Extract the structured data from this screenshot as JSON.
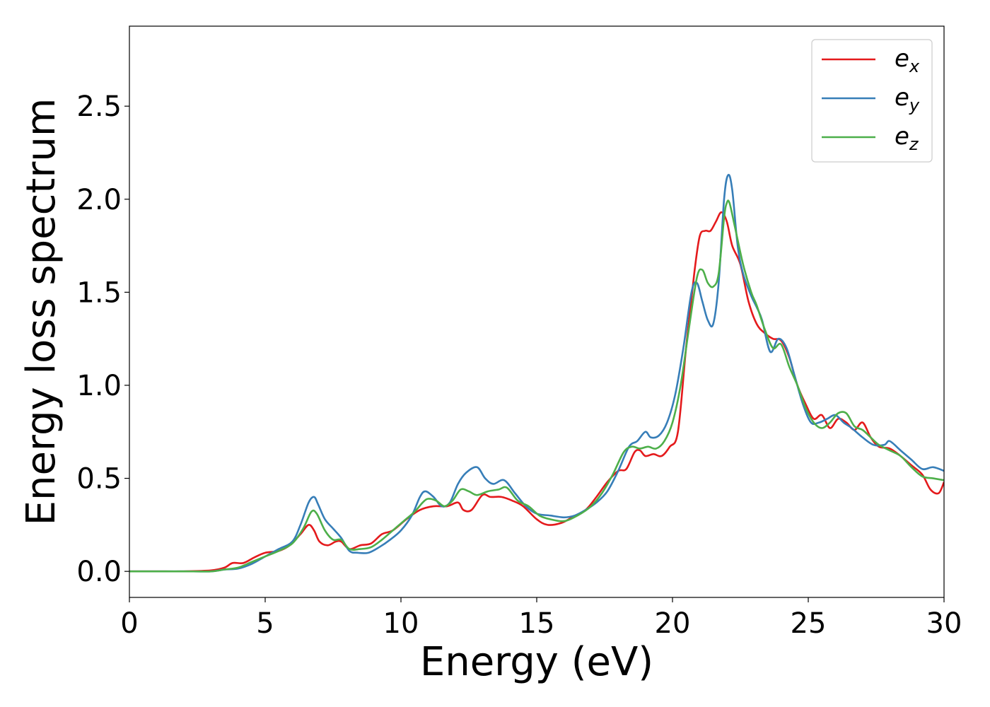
{
  "chart_data": {
    "type": "line",
    "xlabel": "Energy (eV)",
    "ylabel": "Energy loss spectrum",
    "xlim": [
      0,
      30
    ],
    "ylim": [
      -0.14,
      2.93
    ],
    "xticks": [
      0,
      5,
      10,
      15,
      20,
      25,
      30
    ],
    "yticks": [
      0.0,
      0.5,
      1.0,
      1.5,
      2.0,
      2.5
    ],
    "xtick_labels": [
      "0",
      "5",
      "10",
      "15",
      "20",
      "25",
      "30"
    ],
    "ytick_labels": [
      "0.0",
      "0.5",
      "1.0",
      "1.5",
      "2.0",
      "2.5"
    ],
    "grid": false,
    "legend_position": "top-right",
    "series": [
      {
        "name": "e_x",
        "legend_base": "e",
        "legend_sub": "x",
        "color": "#e41a1c",
        "x": [
          0,
          1,
          2,
          3,
          3.5,
          3.8,
          4.2,
          4.6,
          5,
          5.5,
          5.9,
          6.3,
          6.6,
          6.8,
          7.0,
          7.3,
          7.6,
          7.8,
          8.1,
          8.5,
          8.9,
          9.3,
          9.7,
          10.2,
          10.7,
          11.2,
          11.7,
          12.1,
          12.3,
          12.6,
          13.0,
          13.3,
          13.7,
          14.1,
          14.5,
          15.0,
          15.4,
          15.9,
          16.3,
          16.8,
          17.2,
          17.6,
          18.0,
          18.3,
          18.6,
          18.8,
          19.0,
          19.3,
          19.6,
          19.9,
          20.2,
          20.5,
          20.8,
          21.0,
          21.2,
          21.4,
          21.6,
          21.8,
          22.0,
          22.2,
          22.5,
          22.8,
          23.1,
          23.4,
          23.7,
          24.0,
          24.3,
          24.6,
          24.9,
          25.2,
          25.5,
          25.8,
          26.1,
          26.4,
          26.7,
          27.0,
          27.3,
          27.6,
          28.0,
          28.4,
          28.8,
          29.2,
          29.5,
          29.8,
          30.0
        ],
        "y": [
          0.0,
          0.0,
          0.0,
          0.005,
          0.02,
          0.045,
          0.045,
          0.075,
          0.1,
          0.11,
          0.14,
          0.2,
          0.25,
          0.22,
          0.16,
          0.14,
          0.16,
          0.16,
          0.12,
          0.14,
          0.15,
          0.2,
          0.22,
          0.28,
          0.33,
          0.35,
          0.35,
          0.37,
          0.33,
          0.33,
          0.41,
          0.4,
          0.4,
          0.38,
          0.35,
          0.28,
          0.25,
          0.26,
          0.29,
          0.33,
          0.4,
          0.48,
          0.54,
          0.55,
          0.64,
          0.65,
          0.62,
          0.63,
          0.62,
          0.67,
          0.75,
          1.2,
          1.6,
          1.8,
          1.83,
          1.83,
          1.88,
          1.93,
          1.88,
          1.75,
          1.65,
          1.45,
          1.33,
          1.28,
          1.25,
          1.24,
          1.15,
          1.0,
          0.9,
          0.82,
          0.84,
          0.77,
          0.82,
          0.8,
          0.76,
          0.8,
          0.72,
          0.67,
          0.66,
          0.62,
          0.57,
          0.52,
          0.44,
          0.42,
          0.48
        ]
      },
      {
        "name": "e_y",
        "legend_base": "e",
        "legend_sub": "y",
        "color": "#377eb8",
        "x": [
          0,
          1,
          2,
          3,
          3.5,
          4.0,
          4.5,
          5.0,
          5.5,
          6.0,
          6.3,
          6.6,
          6.8,
          6.95,
          7.2,
          7.5,
          7.8,
          8.1,
          8.4,
          8.8,
          9.2,
          9.6,
          10.0,
          10.4,
          10.7,
          10.9,
          11.2,
          11.5,
          11.8,
          12.1,
          12.4,
          12.8,
          13.1,
          13.4,
          13.8,
          14.2,
          14.6,
          15.0,
          15.5,
          16.0,
          16.4,
          16.8,
          17.2,
          17.6,
          18.0,
          18.4,
          18.7,
          19.0,
          19.2,
          19.5,
          19.8,
          20.1,
          20.4,
          20.7,
          20.9,
          21.1,
          21.3,
          21.5,
          21.7,
          21.9,
          22.05,
          22.2,
          22.4,
          22.6,
          22.9,
          23.1,
          23.3,
          23.6,
          23.9,
          24.2,
          24.5,
          24.8,
          25.1,
          25.4,
          25.7,
          26.0,
          26.3,
          26.6,
          27.0,
          27.4,
          27.8,
          28.0,
          28.4,
          28.8,
          29.2,
          29.6,
          30.0
        ],
        "y": [
          0.0,
          0.0,
          0.0,
          0.0,
          0.01,
          0.015,
          0.04,
          0.08,
          0.12,
          0.16,
          0.25,
          0.37,
          0.4,
          0.36,
          0.28,
          0.23,
          0.18,
          0.11,
          0.1,
          0.1,
          0.13,
          0.17,
          0.22,
          0.3,
          0.4,
          0.43,
          0.4,
          0.35,
          0.37,
          0.47,
          0.53,
          0.56,
          0.5,
          0.47,
          0.49,
          0.42,
          0.35,
          0.31,
          0.3,
          0.29,
          0.3,
          0.33,
          0.37,
          0.43,
          0.54,
          0.67,
          0.7,
          0.75,
          0.72,
          0.73,
          0.8,
          0.95,
          1.2,
          1.5,
          1.55,
          1.45,
          1.35,
          1.33,
          1.55,
          2.0,
          2.13,
          2.05,
          1.75,
          1.6,
          1.48,
          1.42,
          1.35,
          1.18,
          1.25,
          1.2,
          1.05,
          0.9,
          0.8,
          0.8,
          0.82,
          0.84,
          0.8,
          0.77,
          0.72,
          0.68,
          0.68,
          0.7,
          0.65,
          0.6,
          0.55,
          0.56,
          0.54
        ]
      },
      {
        "name": "e_z",
        "legend_base": "e",
        "legend_sub": "z",
        "color": "#4daf4a",
        "x": [
          0,
          1,
          2,
          3,
          3.5,
          4.0,
          4.5,
          5.0,
          5.5,
          6.0,
          6.4,
          6.7,
          6.9,
          7.2,
          7.5,
          7.8,
          8.1,
          8.5,
          8.9,
          9.3,
          9.7,
          10.1,
          10.5,
          10.8,
          11.0,
          11.3,
          11.6,
          11.9,
          12.2,
          12.5,
          12.8,
          13.2,
          13.6,
          13.9,
          14.3,
          14.7,
          15.1,
          15.5,
          16.0,
          16.5,
          17.0,
          17.4,
          17.8,
          18.2,
          18.5,
          18.8,
          19.1,
          19.4,
          19.7,
          20.0,
          20.3,
          20.6,
          20.9,
          21.1,
          21.3,
          21.5,
          21.7,
          21.9,
          22.0,
          22.1,
          22.3,
          22.6,
          22.9,
          23.1,
          23.4,
          23.7,
          24.0,
          24.3,
          24.6,
          24.9,
          25.2,
          25.5,
          25.8,
          26.1,
          26.4,
          26.7,
          27.0,
          27.3,
          27.6,
          28.0,
          28.4,
          28.8,
          29.2,
          29.6,
          30.0
        ],
        "y": [
          0.0,
          0.0,
          0.0,
          0.0,
          0.01,
          0.02,
          0.05,
          0.08,
          0.11,
          0.15,
          0.23,
          0.32,
          0.31,
          0.22,
          0.17,
          0.17,
          0.12,
          0.12,
          0.13,
          0.17,
          0.22,
          0.27,
          0.32,
          0.37,
          0.39,
          0.38,
          0.35,
          0.38,
          0.44,
          0.43,
          0.41,
          0.43,
          0.44,
          0.45,
          0.38,
          0.35,
          0.3,
          0.28,
          0.27,
          0.3,
          0.35,
          0.42,
          0.52,
          0.64,
          0.67,
          0.66,
          0.67,
          0.66,
          0.7,
          0.8,
          1.0,
          1.3,
          1.58,
          1.62,
          1.55,
          1.53,
          1.6,
          1.9,
          1.98,
          1.98,
          1.85,
          1.65,
          1.5,
          1.43,
          1.3,
          1.2,
          1.22,
          1.1,
          1.0,
          0.88,
          0.8,
          0.77,
          0.8,
          0.85,
          0.85,
          0.78,
          0.76,
          0.72,
          0.68,
          0.65,
          0.62,
          0.56,
          0.51,
          0.5,
          0.49
        ]
      }
    ]
  }
}
